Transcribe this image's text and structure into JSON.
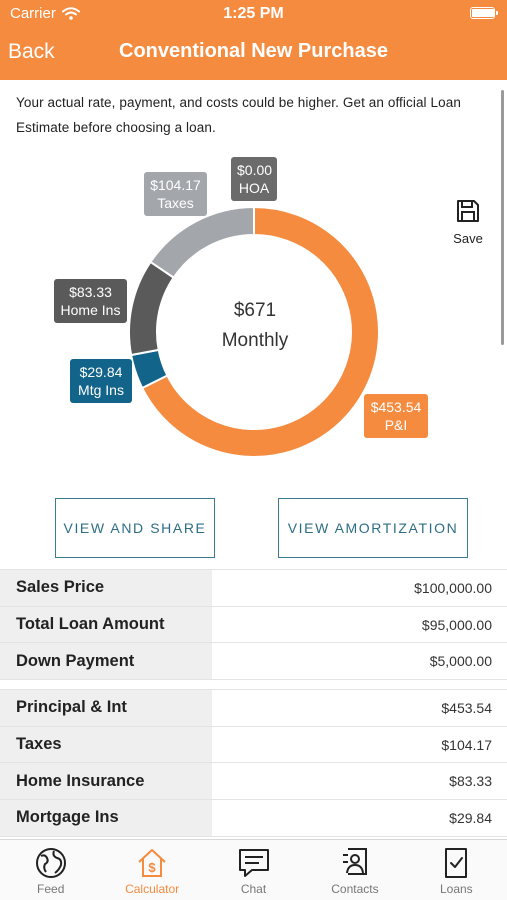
{
  "status": {
    "carrier": "Carrier",
    "time": "1:25 PM",
    "battery_level": 0.95
  },
  "nav": {
    "back_label": "Back",
    "title": "Conventional New Purchase"
  },
  "disclaimer": "Your actual rate, payment, and costs could be higher. Get an official Loan Estimate before choosing a loan.",
  "save_label": "Save",
  "chart_data": {
    "type": "pie",
    "style": "donut",
    "center_value": "$671",
    "center_label": "Monthly",
    "slices": [
      {
        "label": "P&I",
        "value": 453.54,
        "display": "$453.54",
        "color": "#F48B3F"
      },
      {
        "label": "Mtg Ins",
        "value": 29.84,
        "display": "$29.84",
        "color": "#12648A"
      },
      {
        "label": "Home Ins",
        "value": 83.33,
        "display": "$83.33",
        "color": "#5a5a5a"
      },
      {
        "label": "Taxes",
        "value": 104.17,
        "display": "$104.17",
        "color": "#A3A7AB"
      },
      {
        "label": "HOA",
        "value": 0.0,
        "display": "$0.00",
        "color": "#6b6b6b"
      }
    ]
  },
  "buttons": {
    "view_share": "VIEW AND SHARE",
    "view_amortization": "VIEW AMORTIZATION"
  },
  "table1": [
    {
      "label": "Sales Price",
      "value": "$100,000.00"
    },
    {
      "label": "Total Loan Amount",
      "value": "$95,000.00"
    },
    {
      "label": "Down Payment",
      "value": "$5,000.00"
    }
  ],
  "table2": [
    {
      "label": "Principal & Int",
      "value": "$453.54"
    },
    {
      "label": "Taxes",
      "value": "$104.17"
    },
    {
      "label": "Home Insurance",
      "value": "$83.33"
    },
    {
      "label": "Mortgage Ins",
      "value": "$29.84"
    }
  ],
  "tabs": [
    {
      "label": "Feed",
      "icon": "globe-icon"
    },
    {
      "label": "Calculator",
      "icon": "calculator-house-icon",
      "active": true
    },
    {
      "label": "Chat",
      "icon": "chat-icon"
    },
    {
      "label": "Contacts",
      "icon": "contacts-icon"
    },
    {
      "label": "Loans",
      "icon": "document-check-icon"
    }
  ]
}
